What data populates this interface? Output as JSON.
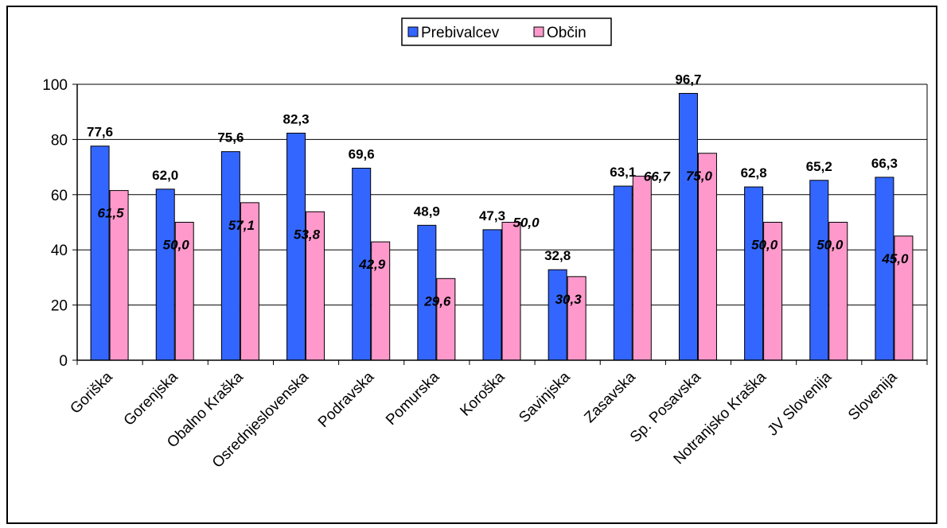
{
  "chart_data": {
    "type": "bar",
    "categories": [
      "Goriška",
      "Gorenjska",
      "Obalno Kraška",
      "Osrednjeslovenska",
      "Podravska",
      "Pomurska",
      "Koroška",
      "Savinjska",
      "Zasavska",
      "Sp. Posavska",
      "Notranjsko Kraška",
      "JV Slovenija",
      "Slovenija"
    ],
    "series": [
      {
        "name": "Prebivalcev",
        "color": "#3366ff",
        "values": [
          77.6,
          62.0,
          75.6,
          82.3,
          69.6,
          48.9,
          47.3,
          32.8,
          63.1,
          96.7,
          62.8,
          65.2,
          66.3
        ]
      },
      {
        "name": "Občin",
        "color": "#ff99cc",
        "values": [
          61.5,
          50.0,
          57.1,
          53.8,
          42.9,
          29.6,
          50.0,
          30.3,
          66.7,
          75.0,
          50.0,
          50.0,
          45.0
        ]
      }
    ],
    "data_labels": {
      "Prebivalcev": [
        "77,6",
        "62,0",
        "75,6",
        "82,3",
        "69,6",
        "48,9",
        "47,3",
        "32,8",
        "63,1",
        "96,7",
        "62,8",
        "65,2",
        "66,3"
      ],
      "Občin": [
        "61,5",
        "50,0",
        "57,1",
        "53,8",
        "42,9",
        "29,6",
        "50,0",
        "30,3",
        "66,7",
        "75,0",
        "50,0",
        "50,0",
        "45,0"
      ]
    },
    "yticks": [
      "0",
      "20",
      "40",
      "60",
      "80",
      "100"
    ],
    "ylim": [
      0,
      100
    ],
    "grid": true,
    "legend_position": "top-center"
  }
}
